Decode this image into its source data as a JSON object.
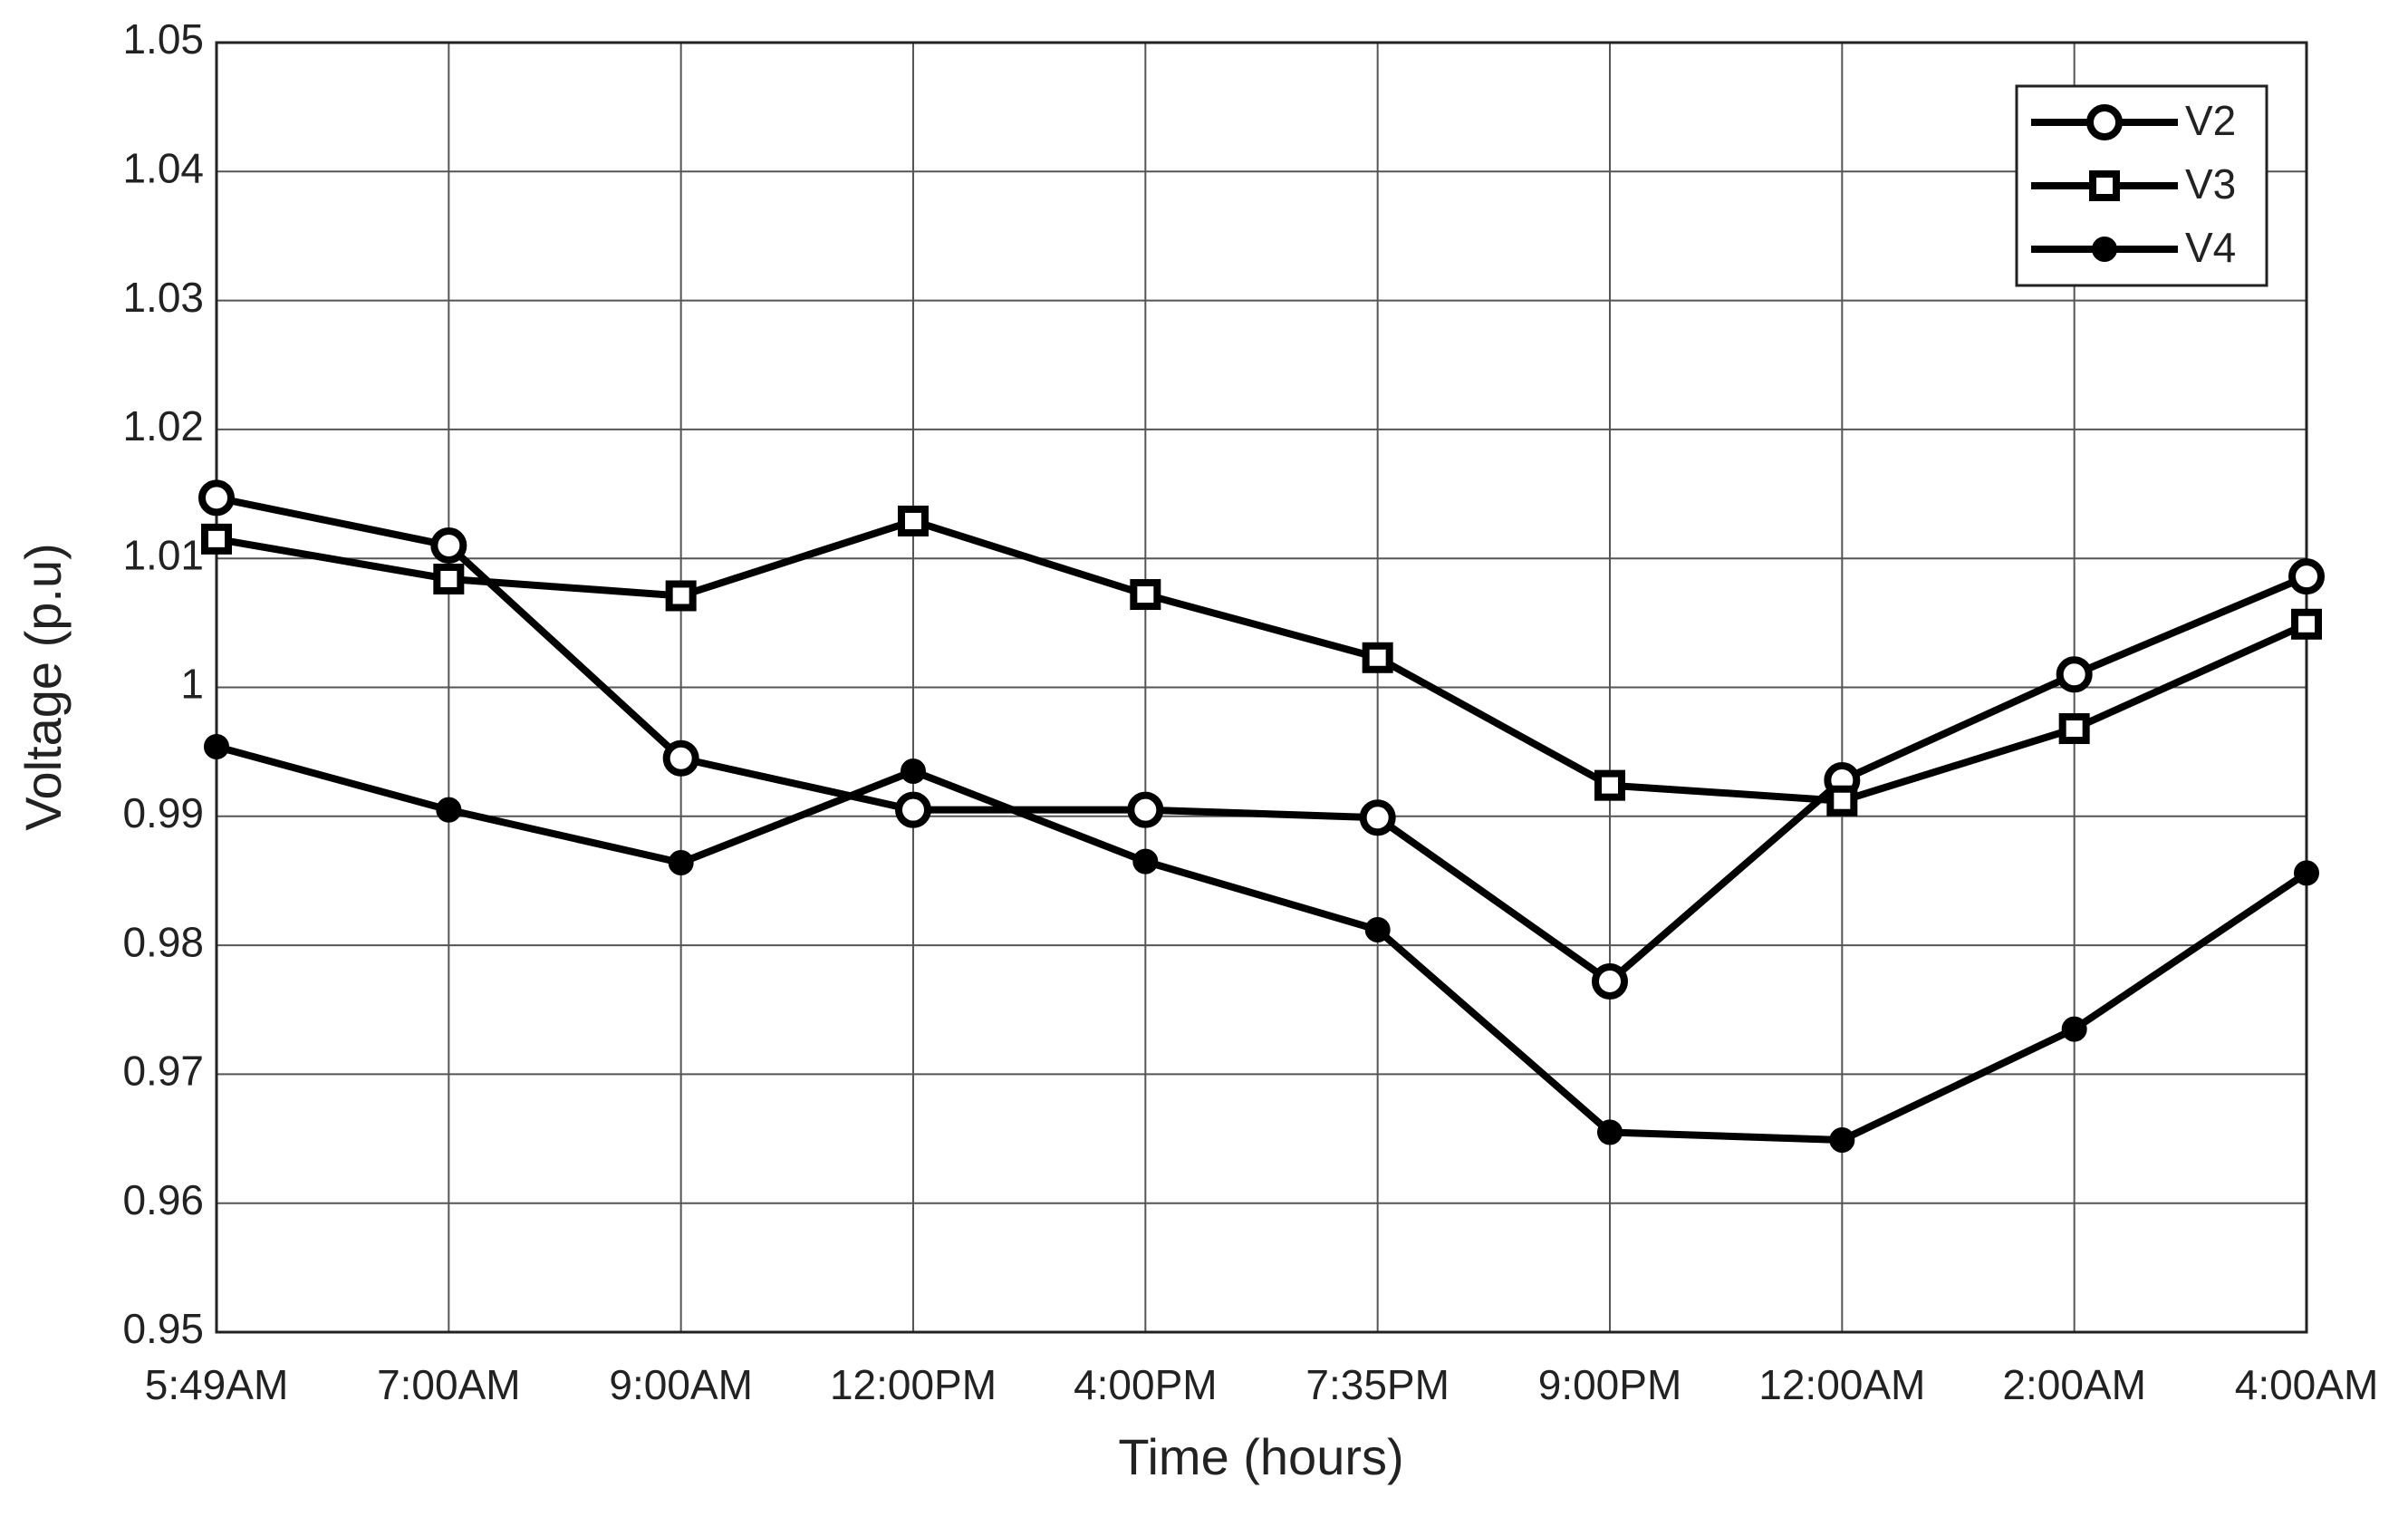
{
  "chart_data": {
    "type": "line",
    "x_label": "Time (hours)",
    "y_label": "Voltage (p.u)",
    "categories": [
      "5:49AM",
      "7:00AM",
      "9:00AM",
      "12:00PM",
      "4:00PM",
      "7:35PM",
      "9:00PM",
      "12:00AM",
      "2:00AM",
      "4:00AM"
    ],
    "series": [
      {
        "name": "V2",
        "color": "#000000",
        "marker": "circle",
        "values": [
          1.0147,
          1.011,
          0.9945,
          0.9905,
          0.9905,
          0.9899,
          0.9772,
          0.9928,
          1.001,
          1.0086
        ]
      },
      {
        "name": "V3",
        "color": "#000000",
        "marker": "square",
        "values": [
          1.0115,
          1.0084,
          1.0071,
          1.0129,
          1.0072,
          1.0023,
          0.9924,
          0.9912,
          0.9968,
          1.0049
        ]
      },
      {
        "name": "V4",
        "color": "#000000",
        "marker": "filled-circle",
        "values": [
          0.9954,
          0.9905,
          0.9864,
          0.9935,
          0.9865,
          0.9812,
          0.9655,
          0.9649,
          0.9735,
          0.9856
        ]
      }
    ],
    "ylim": [
      0.95,
      1.05
    ],
    "yticks": [
      0.95,
      0.96,
      0.97,
      0.98,
      0.99,
      1,
      1.01,
      1.02,
      1.03,
      1.04,
      1.05
    ],
    "grid": true,
    "legend": "top-right"
  }
}
